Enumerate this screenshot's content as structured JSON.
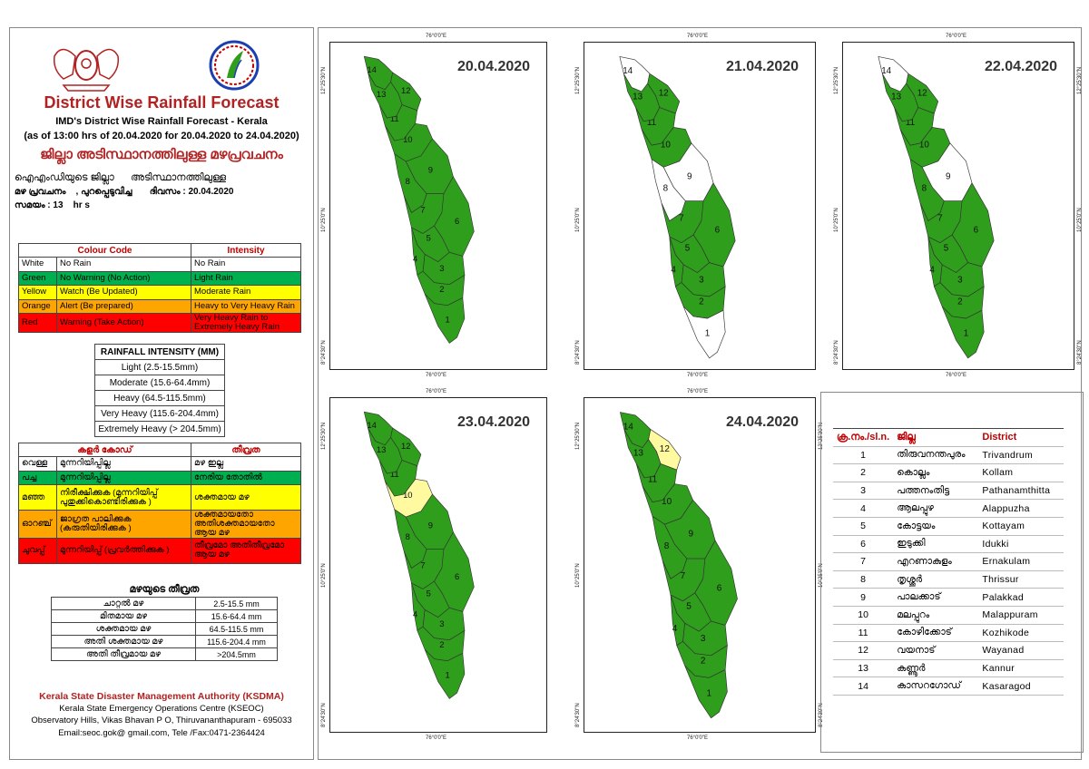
{
  "header": {
    "title": "District Wise Rainfall Forecast",
    "line1": "IMD's District Wise Rainfall Forecast - Kerala",
    "line2": "(as of 13:00 hrs of 20.04.2020  for 20.04.2020  to 24.04.2020)",
    "mal_title": "ജില്ലാ അടിസ്ഥാനത്തിലുള്ള മഴപ്രവചനം",
    "mal_line1": "ഐഎംഡിയുടെ ജില്ലാ      അടിസ്ഥാനത്തിലുള്ള",
    "mal_line2": "മഴ പ്രവചനം    , പുറപ്പെടുവിച്ച       ദിവസം : 20.04.2020",
    "mal_line3": "സമയം : 13    hr s"
  },
  "colour_code": {
    "headers": [
      "Colour Code",
      "Intensity"
    ],
    "rows": [
      {
        "colour": "White",
        "meaning": "No Rain",
        "intensity": "No Rain",
        "bg": "#ffffff"
      },
      {
        "colour": "Green",
        "meaning": "No Warning (No Action)",
        "intensity": "Light Rain",
        "bg": "#00b050"
      },
      {
        "colour": "Yellow",
        "meaning": "Watch (Be Updated)",
        "intensity": "Moderate Rain",
        "bg": "#ffff00"
      },
      {
        "colour": "Orange",
        "meaning": "Alert (Be prepared)",
        "intensity": "Heavy to Very Heavy Rain",
        "bg": "#ffa500"
      },
      {
        "colour": "Red",
        "meaning": "Warning (Take Action)",
        "intensity": "Very Heavy Rain to Extremely Heavy Rain",
        "bg": "#ff0000"
      }
    ]
  },
  "rainfall_intensity": {
    "title": "RAINFALL INTENSITY (MM)",
    "rows": [
      "Light (2.5-15.5mm)",
      "Moderate (15.6-64.4mm)",
      "Heavy (64.5-115.5mm)",
      "Very Heavy (115.6-204.4mm)",
      "Extremely Heavy (> 204.5mm)"
    ]
  },
  "mal_colour_code": {
    "headers": [
      "കളർ കോഡ്",
      "തീവ്രത"
    ],
    "rows": [
      {
        "colour": "വെള്ള",
        "meaning": "മുന്നറിയിപ്പില്ല",
        "intensity": "മഴ ഇല്ല",
        "bg": "#ffffff"
      },
      {
        "colour": "പച്ച",
        "meaning": "മുന്നറിയിപ്പില്ല",
        "intensity": "നേരിയ തോതിൽ",
        "bg": "#00b050"
      },
      {
        "colour": "മഞ്ഞ",
        "meaning": "നിരീക്ഷിക്കുക (മുന്നറിയിപ്പ് പുതുക്കികൊണ്ടിരിക്കുക )",
        "intensity": "ശക്തമായ മഴ",
        "bg": "#ffff00"
      },
      {
        "colour": "ഓറഞ്ച്",
        "meaning": "ജാഗ്രത പാലിക്കുക (കരുതിയിരിക്കുക )",
        "intensity": "ശക്തമായതോ അതിശക്തമായതോ ആയ മഴ",
        "bg": "#ffa500"
      },
      {
        "colour": "ചുവപ്പ്",
        "meaning": "മുന്നറിയിപ്പ് (പ്രവർത്തിക്കുക )",
        "intensity": "തീവ്രമോ അതിതീവ്രമോ ആയ മഴ",
        "bg": "#ff0000"
      }
    ]
  },
  "mal_intensity": {
    "title": "മഴയുടെ തീവ്രത",
    "rows": [
      {
        "name": "ചാറ്റൽ മഴ",
        "range": "2.5-15.5 mm"
      },
      {
        "name": "മിതമായ മഴ",
        "range": "15.6-64.4 mm"
      },
      {
        "name": "ശക്തമായ മഴ",
        "range": "64.5-115.5 mm"
      },
      {
        "name": "അതി ശക്തമായ മഴ",
        "range": "115.6-204.4 mm"
      },
      {
        "name": "അതി തീവ്രമായ മഴ",
        "range": ">204.5mm"
      }
    ]
  },
  "footer": {
    "org": "Kerala State Disaster Management Authority (KSDMA)",
    "line1": "Kerala State Emergency Operations Centre (KSEOC)",
    "line2": "Observatory Hills, Vikas Bhavan P O, Thiruvananthapuram - 695033",
    "line3": "Email:seoc.gok@ gmail.com, Tele /Fax:0471-2364424"
  },
  "coords": {
    "lon": "76°0'0\"E",
    "lat_n": "12°25'30\"N",
    "lat_m": "10°25'0\"N",
    "lat_s": "8°24'30\"N"
  },
  "colors": {
    "green": "#2f9e1c",
    "white": "#ffffff",
    "yellow": "#fffaa0"
  },
  "maps": [
    {
      "date": "20.04.2020",
      "white": [],
      "yellow": []
    },
    {
      "date": "21.04.2020",
      "white": [
        "1",
        "8",
        "9",
        "14"
      ],
      "yellow": []
    },
    {
      "date": "22.04.2020",
      "white": [
        "9",
        "14"
      ],
      "yellow": []
    },
    {
      "date": "23.04.2020",
      "white": [],
      "yellow": [
        "10"
      ]
    },
    {
      "date": "24.04.2020",
      "white": [],
      "yellow": [
        "12"
      ]
    }
  ],
  "district_table": {
    "headers": [
      "ക്ര.നം./sl.n.",
      "ജില്ല",
      "District"
    ],
    "rows": [
      [
        "1",
        "തിരുവനന്തപുരം",
        "Trivandrum"
      ],
      [
        "2",
        "കൊല്ലം",
        "Kollam"
      ],
      [
        "3",
        "പത്തനംതിട്ട",
        "Pathanamthitta"
      ],
      [
        "4",
        "ആലപ്പുഴ",
        "Alappuzha"
      ],
      [
        "5",
        "കോട്ടയം",
        "Kottayam"
      ],
      [
        "6",
        "ഇടുക്കി",
        "Idukki"
      ],
      [
        "7",
        "എറണാകുളം",
        "Ernakulam"
      ],
      [
        "8",
        "തൃശ്ശൂർ",
        "Thrissur"
      ],
      [
        "9",
        "പാലക്കാട്",
        "Palakkad"
      ],
      [
        "10",
        "മലപ്പുറം",
        "Malappuram"
      ],
      [
        "11",
        "കോഴിക്കോട്",
        "Kozhikode"
      ],
      [
        "12",
        "വയനാട്",
        "Wayanad"
      ],
      [
        "13",
        "കണ്ണൂർ",
        "Kannur"
      ],
      [
        "14",
        "കാസറഗോഡ്",
        "Kasaragod"
      ]
    ]
  }
}
